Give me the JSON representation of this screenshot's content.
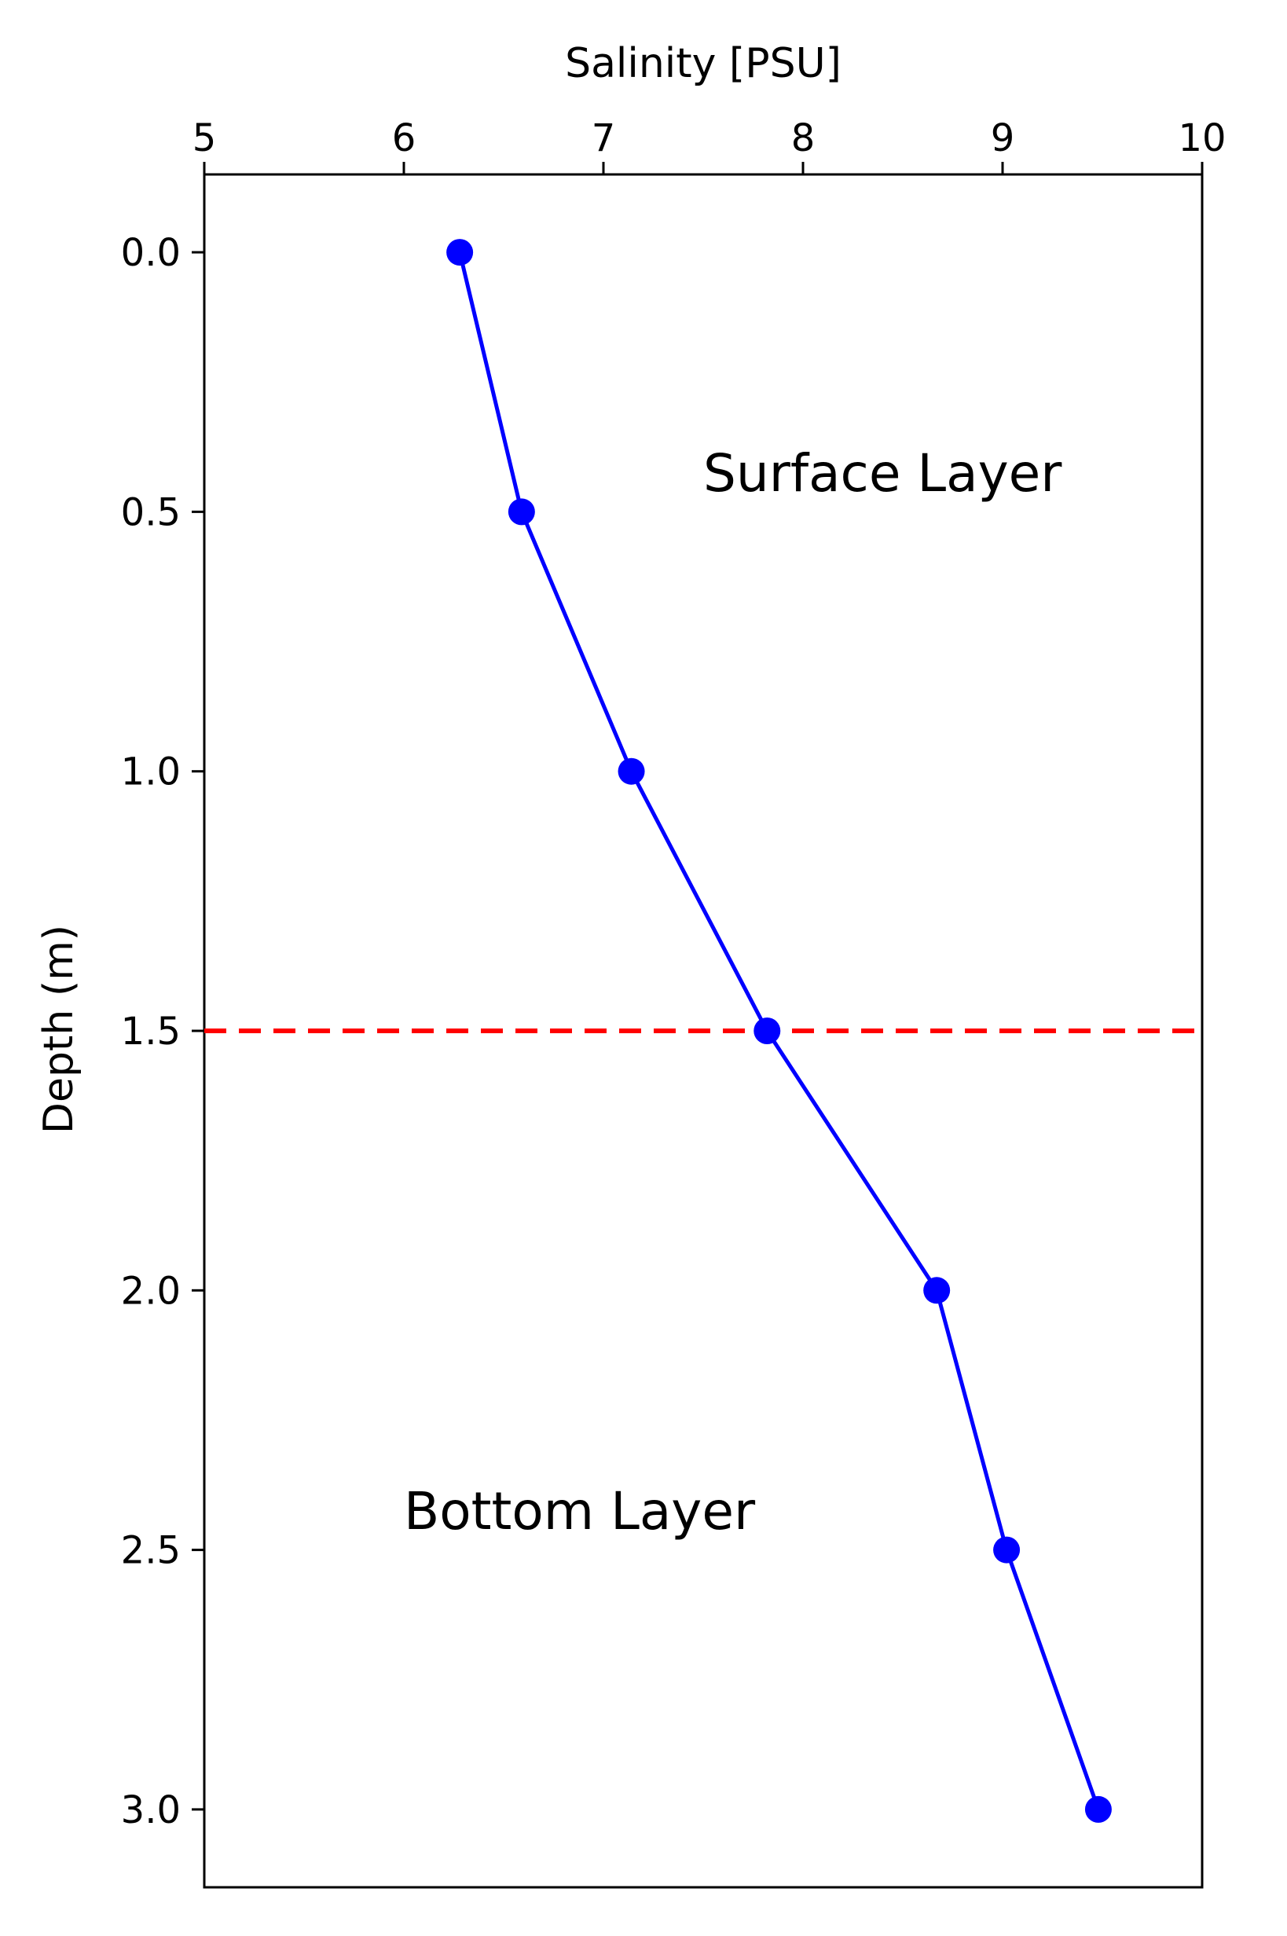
{
  "chart_data": {
    "type": "line",
    "title": "",
    "xlabel": "Salinity [PSU]",
    "ylabel": "Depth (m)",
    "x_axis_position": "top",
    "y_axis_inverted": true,
    "xlim": [
      5,
      10
    ],
    "ylim": [
      3.15,
      -0.15
    ],
    "xticks": [
      "5",
      "6",
      "7",
      "8",
      "9",
      "10"
    ],
    "yticks": [
      "0.0",
      "0.5",
      "1.0",
      "1.5",
      "2.0",
      "2.5",
      "3.0"
    ],
    "grid": false,
    "legend": "none",
    "series": [
      {
        "color": "#0000ff",
        "marker": "circle",
        "points": [
          {
            "x": 6.28,
            "y": 0.0
          },
          {
            "x": 6.59,
            "y": 0.5
          },
          {
            "x": 7.14,
            "y": 1.0
          },
          {
            "x": 7.82,
            "y": 1.5
          },
          {
            "x": 8.67,
            "y": 2.0
          },
          {
            "x": 9.02,
            "y": 2.5
          },
          {
            "x": 9.48,
            "y": 3.0
          }
        ]
      }
    ],
    "reference_line": {
      "orientation": "horizontal",
      "y": 1.5,
      "color": "#ff0000",
      "style": "dashed"
    },
    "annotations": [
      {
        "text": "Surface Layer",
        "x": 7.5,
        "y": 0.46
      },
      {
        "text": "Bottom Layer",
        "x": 6.0,
        "y": 2.46
      }
    ]
  }
}
